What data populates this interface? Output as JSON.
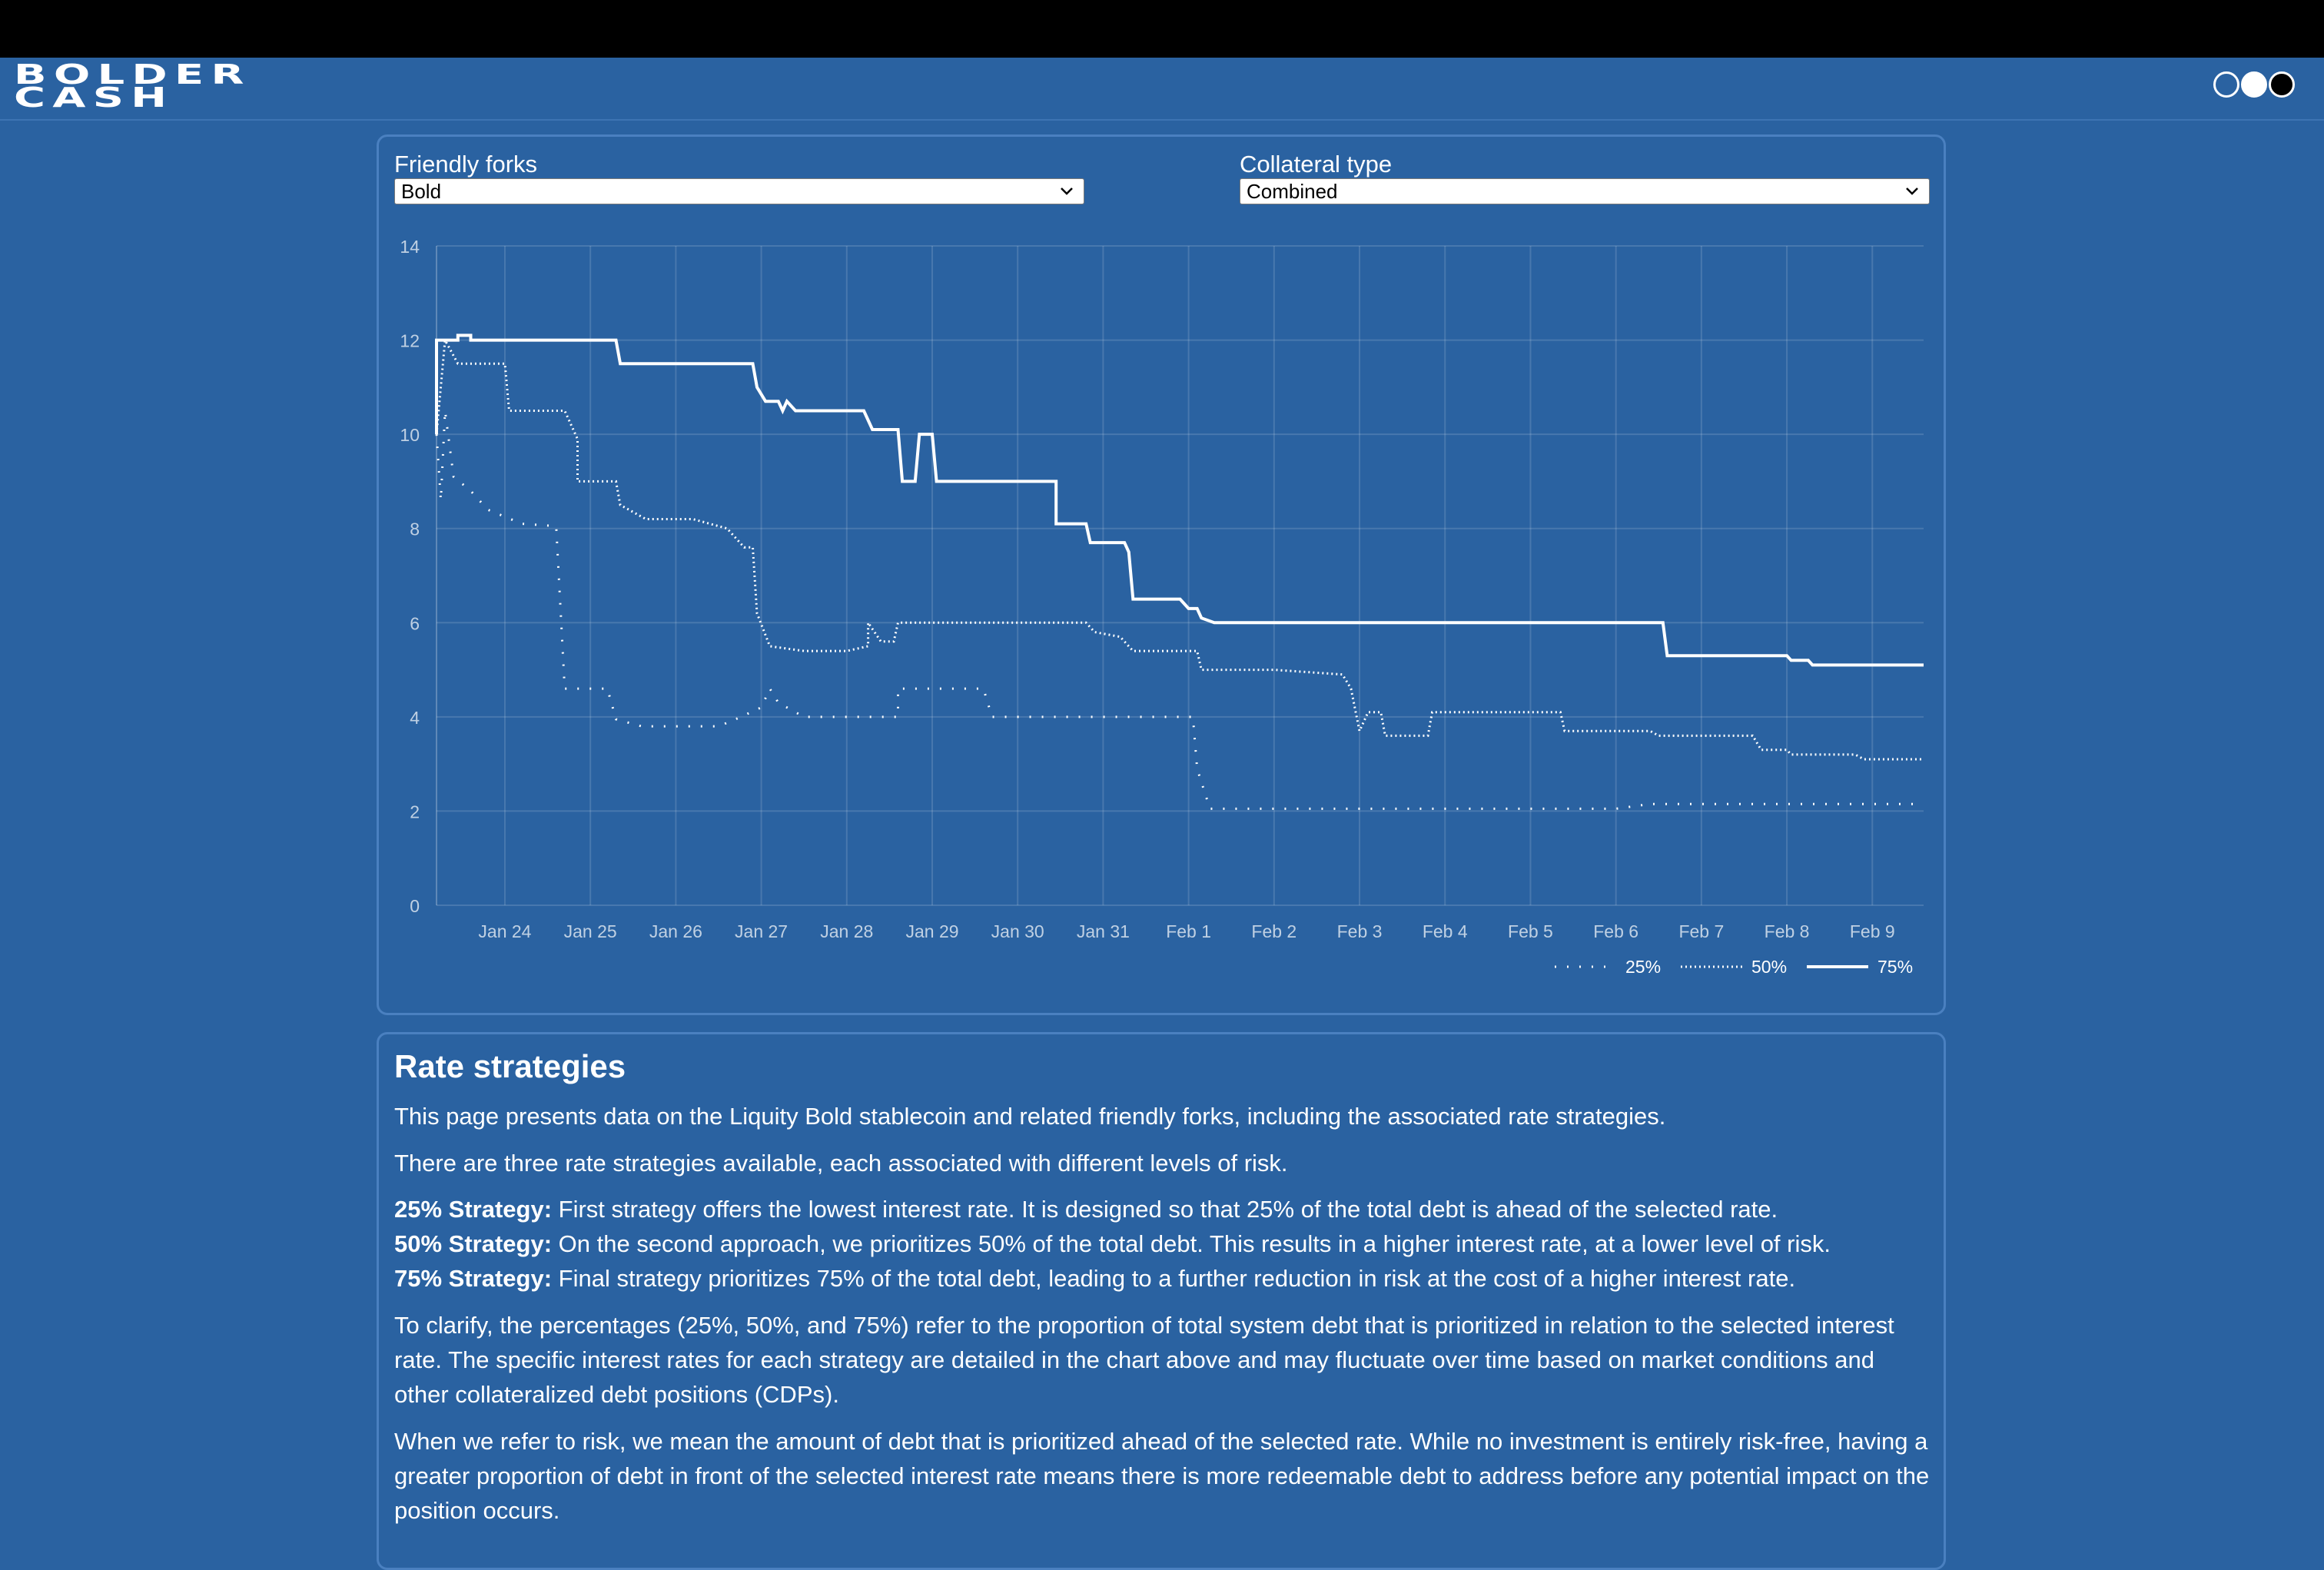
{
  "header": {
    "logo_line1": "BOLDER",
    "logo_line2": "CASH",
    "theme_options": [
      "blue-theme-icon",
      "light-theme-icon",
      "dark-theme-icon"
    ]
  },
  "controls": {
    "forks_label": "Friendly forks",
    "forks_value": "Bold",
    "collateral_label": "Collateral type",
    "collateral_value": "Combined"
  },
  "chart_data": {
    "type": "line",
    "title": "",
    "xlabel": "",
    "ylabel": "",
    "ylim": [
      0,
      14
    ],
    "y_ticks": [
      0,
      2,
      4,
      6,
      8,
      10,
      12,
      14
    ],
    "x_tick_labels": [
      "Jan 24",
      "Jan 25",
      "Jan 26",
      "Jan 27",
      "Jan 28",
      "Jan 29",
      "Jan 30",
      "Jan 31",
      "Feb 1",
      "Feb 2",
      "Feb 3",
      "Feb 4",
      "Feb 5",
      "Feb 6",
      "Feb 7",
      "Feb 8",
      "Feb 9"
    ],
    "x_range_days": [
      -0.8,
      16.6
    ],
    "grid": true,
    "legend_position": "bottom-right",
    "series": [
      {
        "name": "25%",
        "style": "sparse-dotted",
        "points": [
          [
            -0.8,
            10
          ],
          [
            -0.75,
            8.6
          ],
          [
            -0.7,
            10.5
          ],
          [
            -0.6,
            9.1
          ],
          [
            -0.4,
            8.8
          ],
          [
            -0.2,
            8.4
          ],
          [
            0.2,
            8.1
          ],
          [
            0.6,
            8.05
          ],
          [
            0.7,
            4.6
          ],
          [
            1.2,
            4.6
          ],
          [
            1.3,
            3.95
          ],
          [
            1.6,
            3.8
          ],
          [
            2.5,
            3.8
          ],
          [
            2.7,
            3.95
          ],
          [
            3.0,
            4.2
          ],
          [
            3.1,
            4.6
          ],
          [
            3.2,
            4.3
          ],
          [
            3.5,
            4.0
          ],
          [
            4.0,
            4.0
          ],
          [
            4.6,
            4.0
          ],
          [
            4.6,
            4.6
          ],
          [
            5.6,
            4.6
          ],
          [
            5.7,
            4.0
          ],
          [
            6.5,
            4.0
          ],
          [
            7.0,
            4.0
          ],
          [
            8.05,
            4.0
          ],
          [
            8.1,
            2.9
          ],
          [
            8.25,
            2.05
          ],
          [
            9.0,
            2.05
          ],
          [
            10.0,
            2.05
          ],
          [
            11.0,
            2.05
          ],
          [
            12.0,
            2.05
          ],
          [
            13.0,
            2.05
          ],
          [
            13.4,
            2.15
          ],
          [
            14.0,
            2.15
          ],
          [
            15.0,
            2.15
          ],
          [
            16.6,
            2.15
          ]
        ]
      },
      {
        "name": "50%",
        "style": "dense-dotted",
        "points": [
          [
            -0.8,
            10
          ],
          [
            -0.7,
            12
          ],
          [
            -0.55,
            11.5
          ],
          [
            0,
            11.5
          ],
          [
            0.05,
            10.5
          ],
          [
            0.7,
            10.5
          ],
          [
            0.85,
            9.9
          ],
          [
            0.85,
            9.0
          ],
          [
            1.3,
            9.0
          ],
          [
            1.35,
            8.5
          ],
          [
            1.65,
            8.2
          ],
          [
            2.2,
            8.2
          ],
          [
            2.6,
            8.0
          ],
          [
            2.8,
            7.6
          ],
          [
            2.9,
            7.6
          ],
          [
            2.95,
            6.2
          ],
          [
            3.1,
            5.5
          ],
          [
            3.5,
            5.4
          ],
          [
            4.0,
            5.4
          ],
          [
            4.25,
            5.5
          ],
          [
            4.25,
            6.0
          ],
          [
            4.4,
            5.6
          ],
          [
            4.55,
            5.6
          ],
          [
            4.6,
            6.0
          ],
          [
            6.0,
            6.0
          ],
          [
            6.8,
            6.0
          ],
          [
            6.9,
            5.8
          ],
          [
            7.2,
            5.7
          ],
          [
            7.35,
            5.4
          ],
          [
            8.1,
            5.4
          ],
          [
            8.15,
            5.0
          ],
          [
            9.0,
            5.0
          ],
          [
            9.8,
            4.9
          ],
          [
            9.9,
            4.6
          ],
          [
            10.0,
            3.7
          ],
          [
            10.1,
            4.1
          ],
          [
            10.25,
            4.1
          ],
          [
            10.3,
            3.6
          ],
          [
            10.8,
            3.6
          ],
          [
            10.85,
            4.1
          ],
          [
            11.0,
            4.1
          ],
          [
            12.0,
            4.1
          ],
          [
            12.35,
            4.1
          ],
          [
            12.4,
            3.7
          ],
          [
            13.0,
            3.7
          ],
          [
            13.4,
            3.7
          ],
          [
            13.5,
            3.6
          ],
          [
            14.0,
            3.6
          ],
          [
            14.6,
            3.6
          ],
          [
            14.7,
            3.3
          ],
          [
            15.0,
            3.3
          ],
          [
            15.05,
            3.2
          ],
          [
            15.8,
            3.2
          ],
          [
            15.9,
            3.1
          ],
          [
            16.6,
            3.1
          ]
        ]
      },
      {
        "name": "75%",
        "style": "solid",
        "points": [
          [
            -0.8,
            10
          ],
          [
            -0.8,
            12
          ],
          [
            -0.55,
            12
          ],
          [
            -0.55,
            12.1
          ],
          [
            -0.4,
            12.1
          ],
          [
            -0.4,
            12
          ],
          [
            1.3,
            12
          ],
          [
            1.35,
            11.5
          ],
          [
            2.9,
            11.5
          ],
          [
            2.95,
            11.0
          ],
          [
            3.05,
            10.7
          ],
          [
            3.2,
            10.7
          ],
          [
            3.25,
            10.5
          ],
          [
            3.3,
            10.7
          ],
          [
            3.4,
            10.5
          ],
          [
            4.2,
            10.5
          ],
          [
            4.3,
            10.1
          ],
          [
            4.6,
            10.1
          ],
          [
            4.65,
            9.0
          ],
          [
            4.8,
            9.0
          ],
          [
            4.85,
            10.0
          ],
          [
            5.0,
            10.0
          ],
          [
            5.05,
            9.0
          ],
          [
            6.0,
            9.0
          ],
          [
            6.45,
            9.0
          ],
          [
            6.45,
            8.1
          ],
          [
            6.8,
            8.1
          ],
          [
            6.85,
            7.7
          ],
          [
            7.25,
            7.7
          ],
          [
            7.3,
            7.5
          ],
          [
            7.35,
            6.5
          ],
          [
            7.9,
            6.5
          ],
          [
            8.0,
            6.3
          ],
          [
            8.1,
            6.3
          ],
          [
            8.15,
            6.1
          ],
          [
            8.3,
            6.0
          ],
          [
            9.0,
            6.0
          ],
          [
            10.0,
            6.0
          ],
          [
            11.0,
            6.0
          ],
          [
            12.0,
            6.0
          ],
          [
            13.55,
            6.0
          ],
          [
            13.6,
            5.3
          ],
          [
            15.0,
            5.3
          ],
          [
            15.05,
            5.2
          ],
          [
            15.25,
            5.2
          ],
          [
            15.3,
            5.1
          ],
          [
            16.6,
            5.1
          ]
        ]
      }
    ]
  },
  "info": {
    "title": "Rate strategies",
    "intro": "This page presents data on the Liquity Bold stablecoin and related friendly forks, including the associated rate strategies.",
    "three": "There are three rate strategies available, each associated with different levels of risk.",
    "strategies": [
      {
        "label": "25% Strategy:",
        "text": " First strategy offers the lowest interest rate. It is designed so that 25% of the total debt is ahead of the selected rate."
      },
      {
        "label": "50% Strategy:",
        "text": " On the second approach, we prioritizes 50% of the total debt. This results in a higher interest rate, at a lower level of risk."
      },
      {
        "label": "75% Strategy:",
        "text": " Final strategy prioritizes 75% of the total debt, leading to a further reduction in risk at the cost of a higher interest rate."
      }
    ],
    "clarify": "To clarify, the percentages (25%, 50%, and 75%) refer to the proportion of total system debt that is prioritized in relation to the selected interest rate. The specific interest rates for each strategy are detailed in the chart above and may fluctuate over time based on market conditions and other collateralized debt positions (CDPs).",
    "risk": "When we refer to risk, we mean the amount of debt that is prioritized ahead of the selected rate. While no investment is entirely risk-free, having a greater proportion of debt in front of the selected interest rate means there is more redeemable debt to address before any potential impact on the position occurs."
  }
}
